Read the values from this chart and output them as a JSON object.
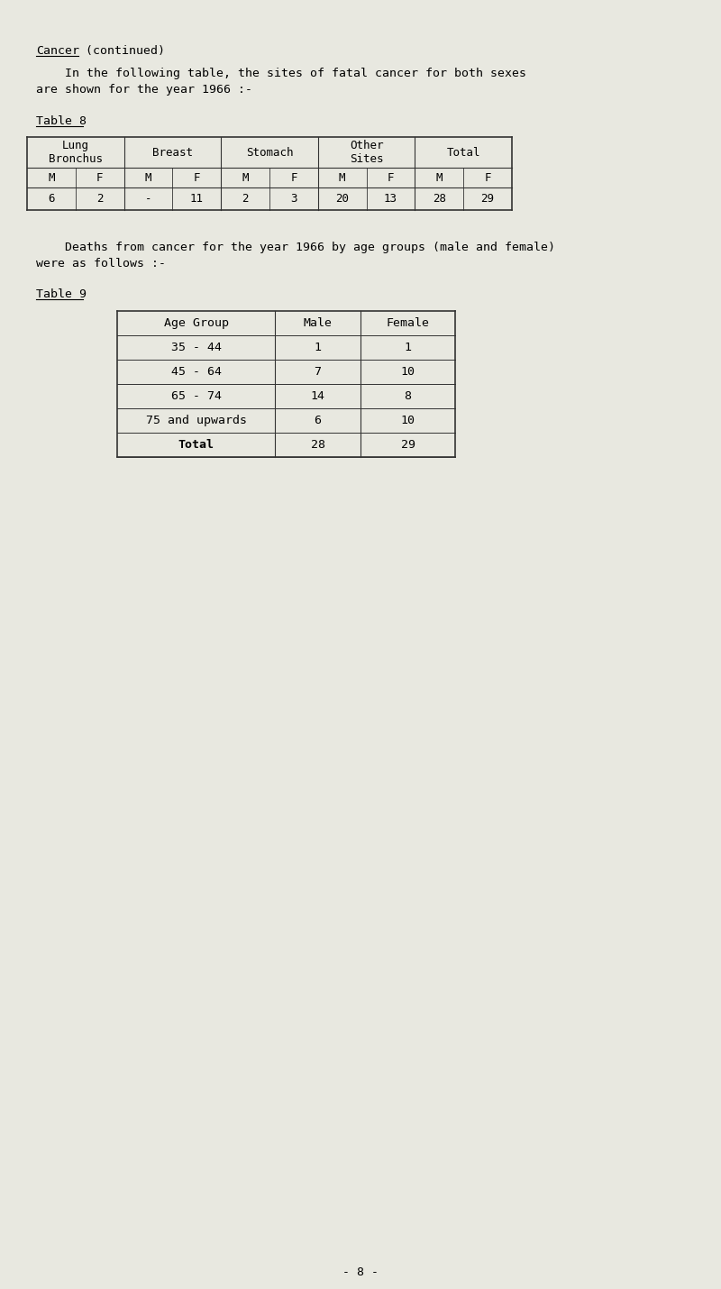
{
  "bg_color": "#e8e8e0",
  "title_underline": "Cancer",
  "title_rest": " (continued)",
  "para1": "    In the following table, the sites of fatal cancer for both sexes\nare shown for the year 1966 :-",
  "table8_label": "Table 8",
  "table8_headers_row1": [
    "Lung\nBronchus",
    "Breast",
    "Stomach",
    "Other\nSites",
    "Total"
  ],
  "table8_headers_row2": [
    "M",
    "F",
    "M",
    "F",
    "M",
    "F",
    "M",
    "F",
    "M",
    "F"
  ],
  "table8_data": [
    "6",
    "2",
    "-",
    "11",
    "2",
    "3",
    "20",
    "13",
    "28",
    "29"
  ],
  "para2": "    Deaths from cancer for the year 1966 by age groups (male and female)\nwere as follows :-",
  "table9_label": "Table 9",
  "table9_col_headers": [
    "Age Group",
    "Male",
    "Female"
  ],
  "table9_rows": [
    [
      "35 - 44",
      "1",
      "1"
    ],
    [
      "45 - 64",
      "7",
      "10"
    ],
    [
      "65 - 74",
      "14",
      "8"
    ],
    [
      "75 and upwards",
      "6",
      "10"
    ],
    [
      "Total",
      "28",
      "29"
    ]
  ],
  "page_number": "- 8 -",
  "font_family": "monospace",
  "font_size": 9.5
}
